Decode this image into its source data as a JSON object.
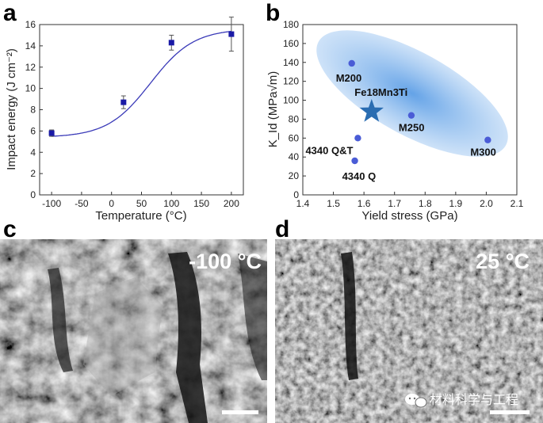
{
  "panels": {
    "a": "a",
    "b": "b",
    "c": "c",
    "d": "d"
  },
  "chart_data": [
    {
      "type": "scatter",
      "panel": "a",
      "x": [
        -100,
        20,
        100,
        200
      ],
      "y": [
        5.8,
        8.7,
        14.3,
        15.1
      ],
      "y_err": [
        0.3,
        0.6,
        0.7,
        1.6
      ],
      "fit": "sigmoidal",
      "xlabel": "Temperature (°C)",
      "ylabel": "Impact energy (J cm⁻²)",
      "xlim": [
        -120,
        220
      ],
      "ylim": [
        0,
        16
      ],
      "xticks": [
        -100,
        -50,
        0,
        50,
        100,
        150,
        200
      ],
      "yticks": [
        0,
        2,
        4,
        6,
        8,
        10,
        12,
        14,
        16
      ],
      "marker_color": "#1a1aa6",
      "line_color": "#3a3ab8"
    },
    {
      "type": "scatter",
      "panel": "b",
      "points": [
        {
          "label": "M200",
          "x": 1.56,
          "y": 139
        },
        {
          "label": "M250",
          "x": 1.755,
          "y": 84
        },
        {
          "label": "M300",
          "x": 2.005,
          "y": 58
        },
        {
          "label": "4340 Q&T",
          "x": 1.58,
          "y": 60
        },
        {
          "label": "4340 Q",
          "x": 1.57,
          "y": 36
        }
      ],
      "highlight": {
        "label": "Fe18Mn3Ti",
        "x": 1.625,
        "y": 88,
        "marker": "star"
      },
      "xlabel": "Yield stress (GPa)",
      "ylabel": "K_Id (MPa√m)",
      "xlim": [
        1.4,
        2.1
      ],
      "ylim": [
        0,
        180
      ],
      "xticks": [
        "1.4",
        "1.5",
        "1.6",
        "1.7",
        "1.8",
        "1.9",
        "2.0",
        "2.1"
      ],
      "yticks": [
        0,
        20,
        40,
        60,
        80,
        100,
        120,
        140,
        160,
        180
      ],
      "point_color": "#4a5cd6",
      "star_color": "#2a6db2",
      "region_color": "#7fb3ea"
    }
  ],
  "micrographs": {
    "c": {
      "label": "-100 °C"
    },
    "d": {
      "label": "25 °C",
      "watermark": "材料科学与工程"
    }
  }
}
